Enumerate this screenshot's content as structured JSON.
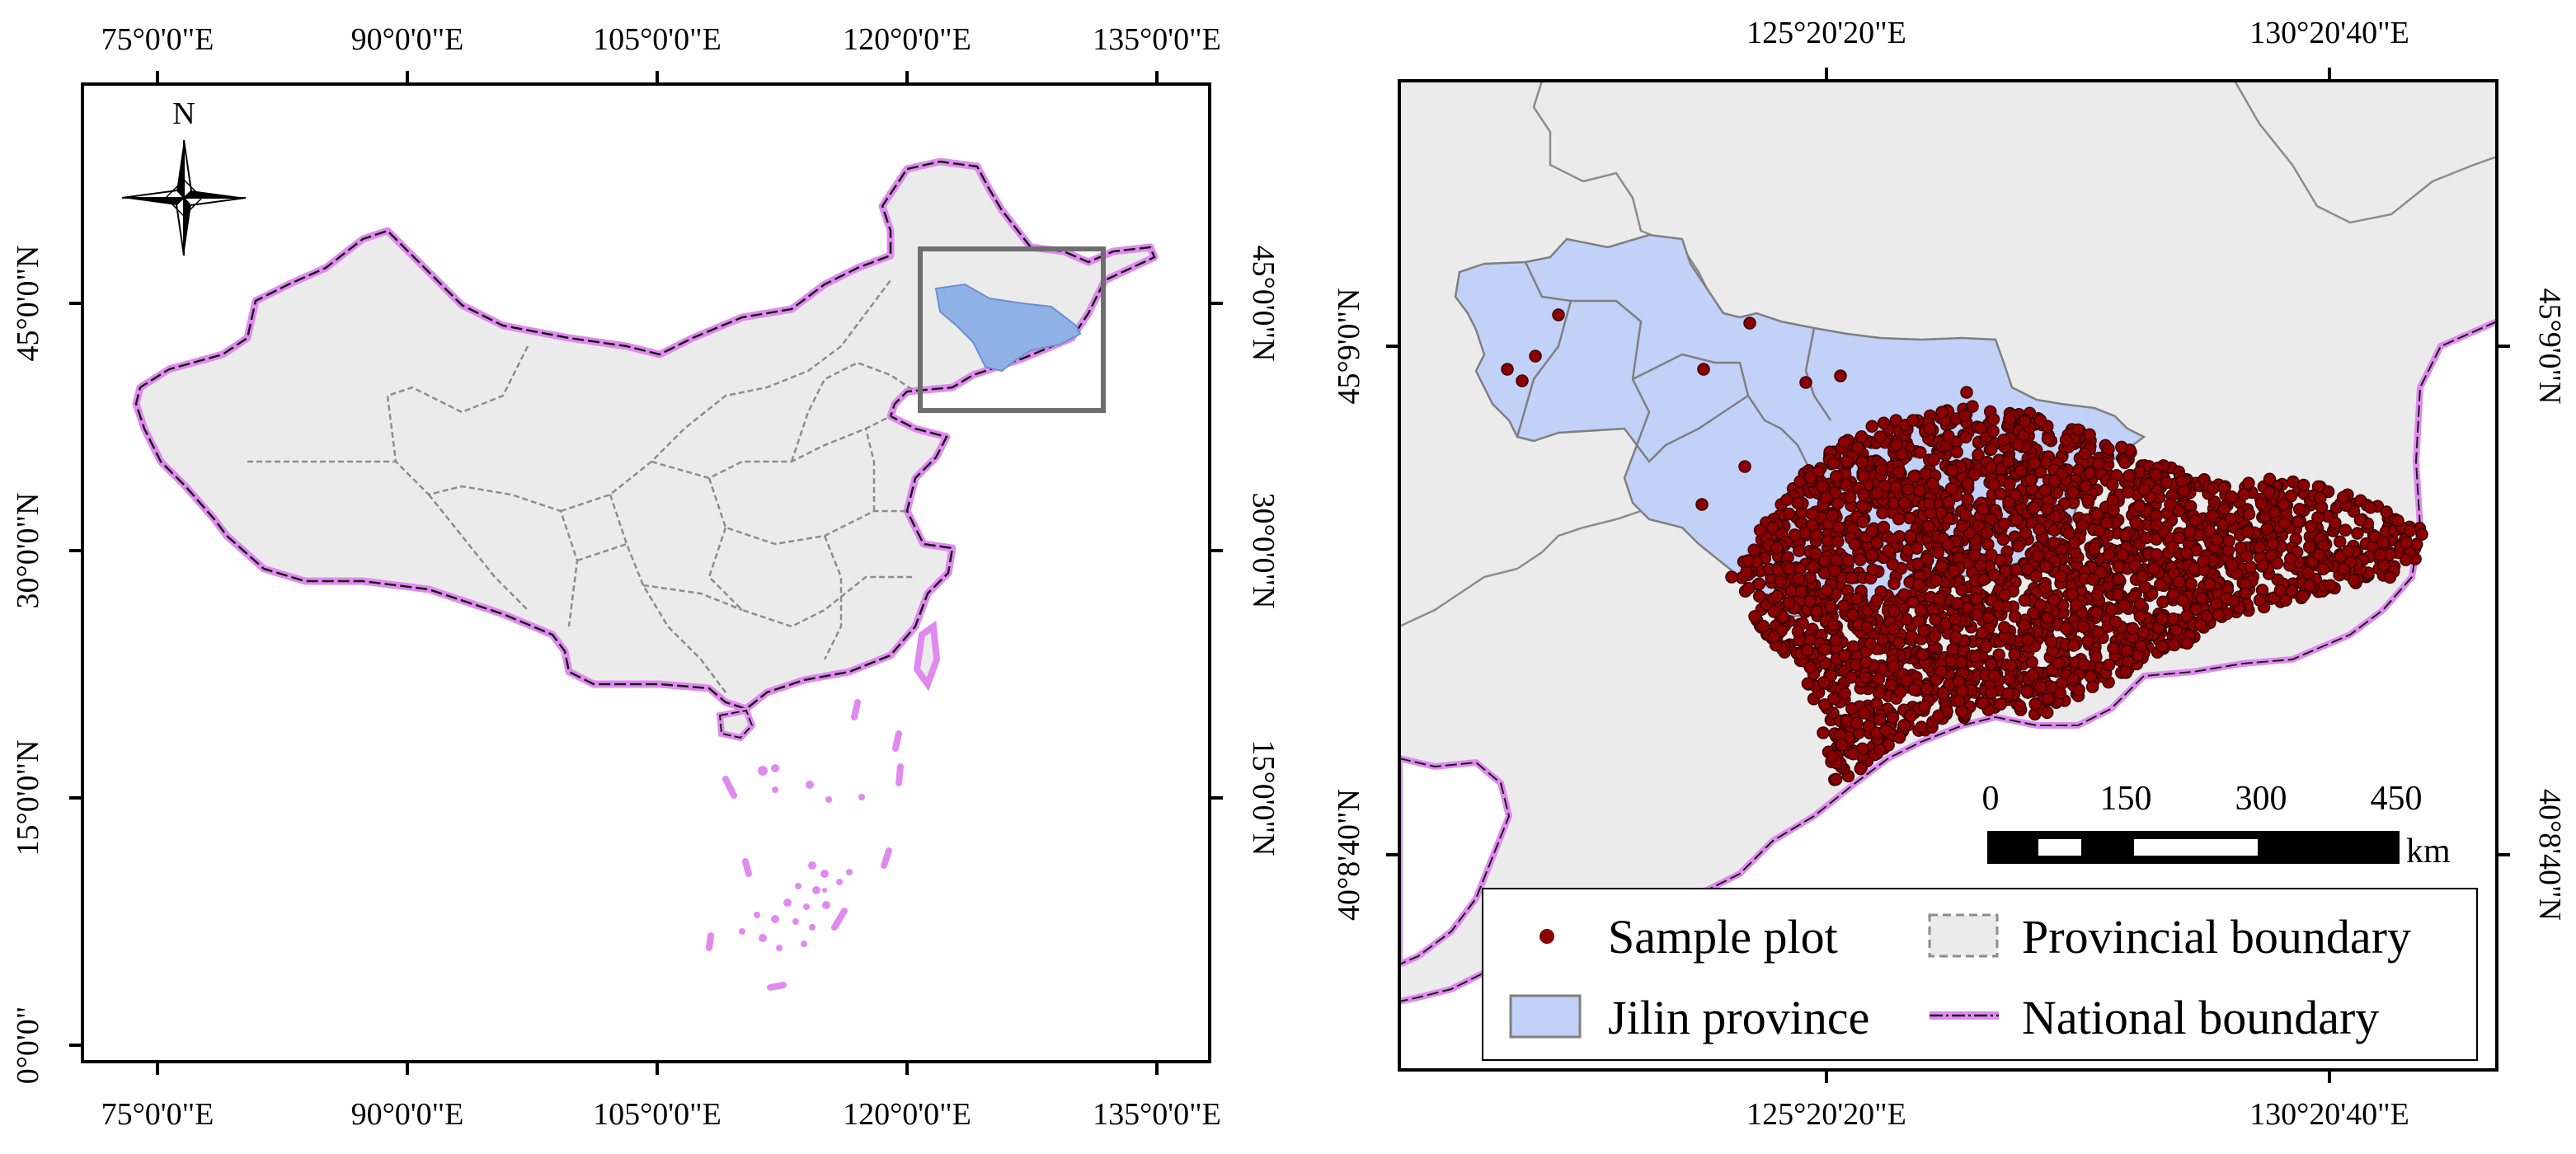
{
  "left_map": {
    "top_ticks": [
      "75°0'0\"E",
      "90°0'0\"E",
      "105°0'0\"E",
      "120°0'0\"E",
      "135°0'0\"E"
    ],
    "bottom_ticks": [
      "75°0'0\"E",
      "90°0'0\"E",
      "105°0'0\"E",
      "120°0'0\"E",
      "135°0'0\"E"
    ],
    "left_ticks": [
      "45°0'0\"N",
      "30°0'0\"N",
      "15°0'0\"N",
      "0°0'0\""
    ],
    "right_ticks": [
      "45°0'0\"N",
      "30°0'0\"N",
      "15°0'0\"N"
    ],
    "north_label": "N"
  },
  "right_map": {
    "top_ticks": [
      "125°20'20\"E",
      "130°20'40\"E"
    ],
    "bottom_ticks": [
      "125°20'20\"E",
      "130°20'40\"E"
    ],
    "left_ticks": [
      "45°9'0\"N",
      "40°8'40\"N"
    ],
    "right_ticks": [
      "45°9'0\"N",
      "40°8'40\"N"
    ],
    "scale_bar": {
      "labels": [
        "0",
        "150",
        "300",
        "450"
      ],
      "unit": "km"
    },
    "legend": {
      "sample_plot": "Sample plot",
      "provincial_boundary": "Provincial boundary",
      "jilin_province": "Jilin province",
      "national_boundary": "National boundary"
    }
  },
  "colors": {
    "land": "#ebebeb",
    "jilin": "#c2d1f7",
    "jilin_inset": "#8fb2e6",
    "sample": "#8b0000",
    "national_glow": "#e08aef",
    "provincial": "#8c8c8c",
    "frame": "#000000",
    "inset_box": "#6e6e6e"
  }
}
